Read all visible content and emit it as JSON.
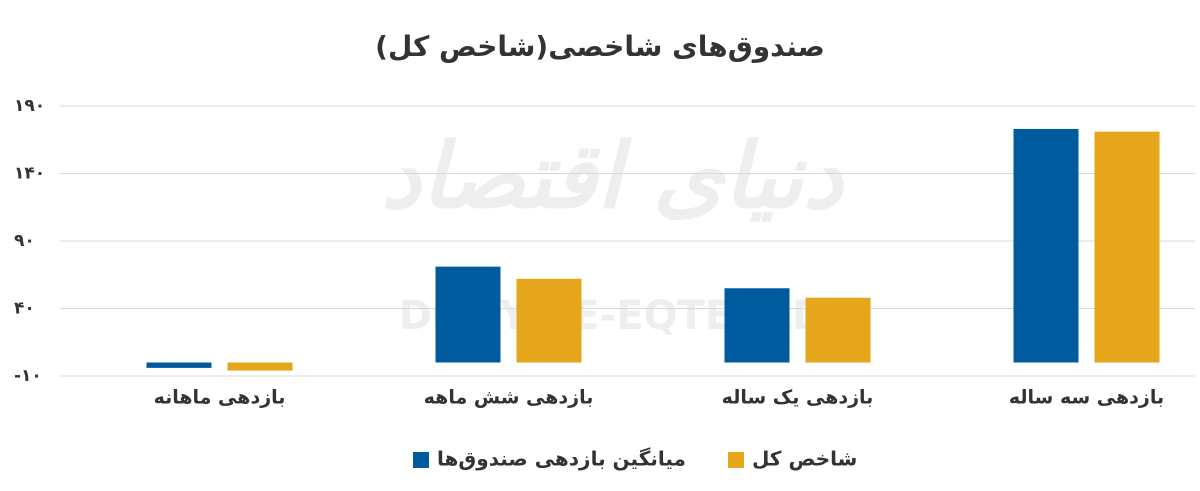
{
  "chart_data": {
    "type": "bar",
    "title": "صندوق‌های شاخصی(شاخص کل)",
    "watermark": "DONYA-E-EQTESAD",
    "watermark_logo": "دنیای اقتصاد",
    "categories": [
      "بازدهی ماهانه",
      "بازدهی شش ماهه",
      "بازدهی یک ساله",
      "بازدهی سه ساله"
    ],
    "series": [
      {
        "name": "میانگین بازدهی صندوق‌ها",
        "color": "#005a9e",
        "values": [
          -4,
          71,
          55,
          173
        ]
      },
      {
        "name": "شاخص کل",
        "color": "#e5a61b",
        "values": [
          -6,
          62,
          48,
          171
        ]
      }
    ],
    "ylim": [
      -10,
      190
    ],
    "yticks": [
      {
        "value": -10,
        "label": "-۱۰"
      },
      {
        "value": 40,
        "label": "۴۰"
      },
      {
        "value": 90,
        "label": "۹۰"
      },
      {
        "value": 140,
        "label": "۱۴۰"
      },
      {
        "value": 190,
        "label": "۱۹۰"
      }
    ],
    "grid": true
  }
}
